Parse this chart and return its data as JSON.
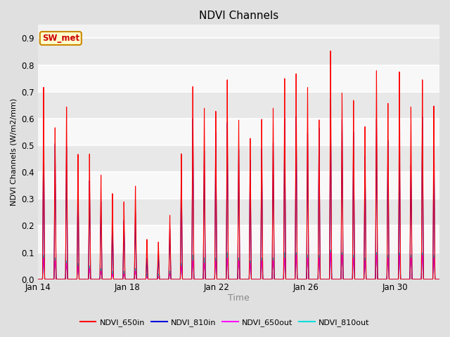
{
  "title": "NDVI Channels",
  "xlabel": "Time",
  "ylabel": "NDVI Channels (W/m2/mm)",
  "ylim": [
    0.0,
    0.95
  ],
  "yticks": [
    0.0,
    0.1,
    0.2,
    0.3,
    0.4,
    0.5,
    0.6,
    0.7,
    0.8,
    0.9
  ],
  "bg_color": "#e0e0e0",
  "plot_bg_color": "#f2f2f2",
  "legend_labels": [
    "NDVI_650in",
    "NDVI_810in",
    "NDVI_650out",
    "NDVI_810out"
  ],
  "legend_colors": [
    "#ff0000",
    "#0000dd",
    "#ff00ff",
    "#00dddd"
  ],
  "annotation_text": "SW_met",
  "annotation_color": "#cc0000",
  "annotation_bg": "#ffffcc",
  "annotation_border": "#cc8800",
  "xtick_labels": [
    "Jan 14",
    "Jan 18",
    "Jan 22",
    "Jan 26",
    "Jan 30"
  ],
  "num_days": 18,
  "spike_data_650in": [
    0.72,
    0.57,
    0.65,
    0.47,
    0.47,
    0.39,
    0.32,
    0.29,
    0.35,
    0.15,
    0.14,
    0.24,
    0.47,
    0.72,
    0.64,
    0.63,
    0.75,
    0.6,
    0.53,
    0.6,
    0.64,
    0.75,
    0.77,
    0.72,
    0.6,
    0.86,
    0.7,
    0.67,
    0.57,
    0.78,
    0.66,
    0.78,
    0.65,
    0.75,
    0.65
  ],
  "spike_data_810in": [
    0.57,
    0.51,
    0.5,
    0.36,
    0.37,
    0.29,
    0.22,
    0.22,
    0.25,
    0.08,
    0.09,
    0.19,
    0.41,
    0.6,
    0.48,
    0.55,
    0.59,
    0.49,
    0.45,
    0.49,
    0.51,
    0.6,
    0.61,
    0.55,
    0.57,
    0.68,
    0.6,
    0.55,
    0.46,
    0.6,
    0.52,
    0.5,
    0.43,
    0.61,
    0.5
  ],
  "spike_data_650out": [
    0.08,
    0.07,
    0.06,
    0.05,
    0.04,
    0.03,
    0.02,
    0.02,
    0.03,
    0.01,
    0.01,
    0.02,
    0.05,
    0.07,
    0.06,
    0.07,
    0.08,
    0.07,
    0.06,
    0.07,
    0.07,
    0.08,
    0.09,
    0.08,
    0.08,
    0.1,
    0.09,
    0.08,
    0.07,
    0.09,
    0.08,
    0.09,
    0.08,
    0.09,
    0.08
  ],
  "spike_data_810out": [
    0.09,
    0.08,
    0.07,
    0.06,
    0.05,
    0.04,
    0.03,
    0.03,
    0.04,
    0.02,
    0.02,
    0.03,
    0.06,
    0.09,
    0.08,
    0.08,
    0.1,
    0.08,
    0.07,
    0.08,
    0.08,
    0.1,
    0.1,
    0.09,
    0.09,
    0.11,
    0.1,
    0.09,
    0.08,
    0.1,
    0.09,
    0.1,
    0.09,
    0.1,
    0.09
  ]
}
